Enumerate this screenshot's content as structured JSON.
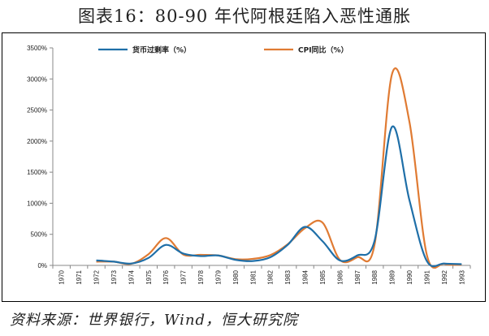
{
  "title": "图表16：80-90 年代阿根廷陷入恶性通胀",
  "source": "资料来源：世界银行，Wind，恒大研究院",
  "chart_data": {
    "type": "line",
    "categories": [
      "1970",
      "1971",
      "1972",
      "1973",
      "1974",
      "1975",
      "1976",
      "1977",
      "1978",
      "1979",
      "1980",
      "1981",
      "1982",
      "1983",
      "1984",
      "1985",
      "1986",
      "1987",
      "1988",
      "1989",
      "1990",
      "1991",
      "1992",
      "1993"
    ],
    "ylim": [
      0,
      3500
    ],
    "yticks": [
      0,
      500,
      1000,
      1500,
      2000,
      2500,
      3000,
      3500
    ],
    "ytick_labels": [
      "0%",
      "500%",
      "1000%",
      "1500%",
      "2000%",
      "2500%",
      "3000%",
      "3500%"
    ],
    "legend_position": "top",
    "series": [
      {
        "name": "货币过剩率（%）",
        "color": "#1f6fa8",
        "values": [
          null,
          null,
          80,
          60,
          30,
          120,
          330,
          190,
          150,
          160,
          90,
          70,
          130,
          330,
          620,
          390,
          80,
          160,
          400,
          2230,
          1050,
          70,
          30,
          20
        ]
      },
      {
        "name": "CPI同比（%）",
        "color": "#e07b33",
        "values": [
          null,
          null,
          60,
          60,
          25,
          180,
          440,
          175,
          170,
          160,
          100,
          105,
          165,
          340,
          600,
          690,
          90,
          130,
          340,
          3080,
          2310,
          170,
          25,
          10
        ]
      }
    ]
  }
}
